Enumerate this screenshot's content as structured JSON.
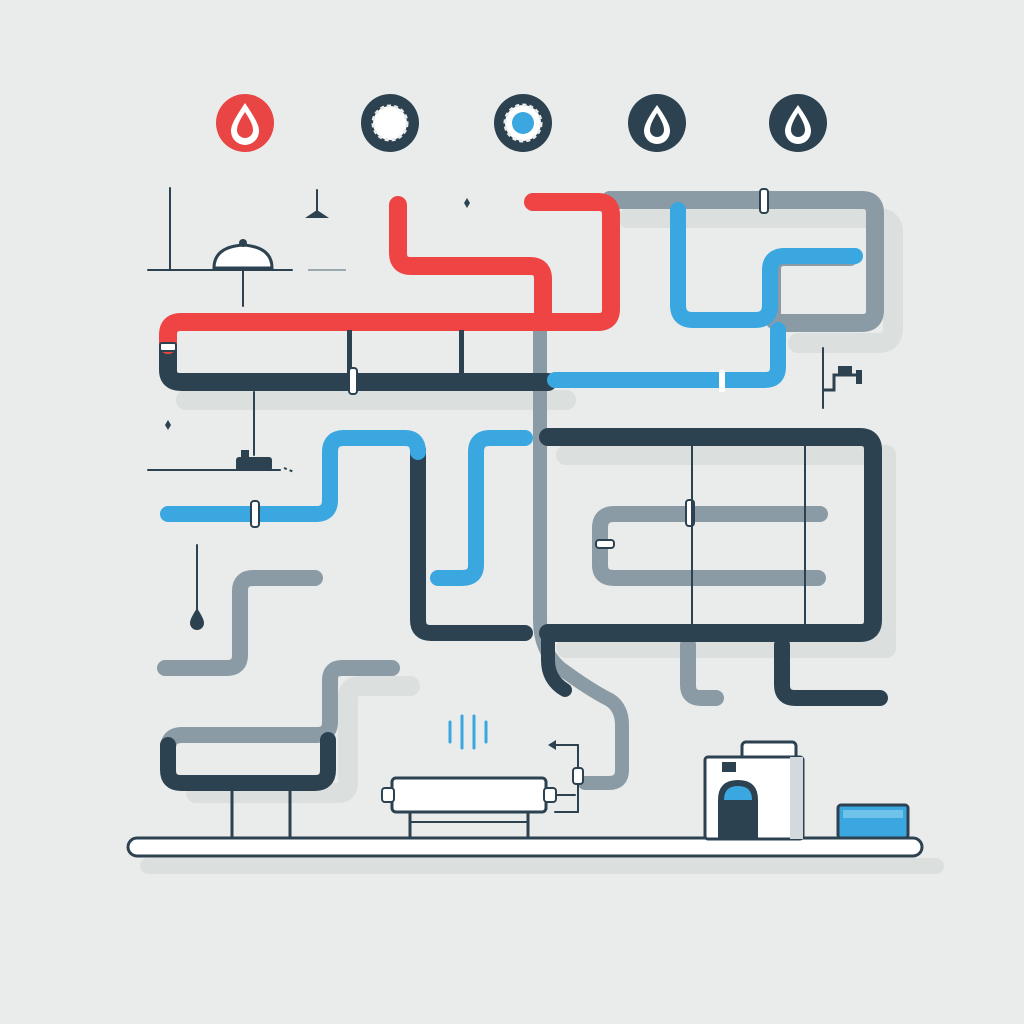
{
  "palette": {
    "background": "#e9ecea",
    "hot": "#ef4444",
    "cold": "#3aa7e0",
    "gray": "#8a9ba5",
    "dark": "#2d4250",
    "floor": "#ffffff"
  },
  "legend": {
    "icons": [
      {
        "name": "hot-water-drop-icon",
        "color": "#e94545"
      },
      {
        "name": "gear-icon",
        "color": "#2d4250"
      },
      {
        "name": "valve-icon",
        "color": "#3aa7e0"
      },
      {
        "name": "water-drop-icon",
        "color": "#2d4250"
      },
      {
        "name": "water-drop-icon",
        "color": "#2d4250"
      }
    ]
  },
  "fixtures": [
    "ceiling-lamp-icon",
    "faucet-icon",
    "radiator-icon",
    "water-heater-icon",
    "water-tank-icon"
  ]
}
